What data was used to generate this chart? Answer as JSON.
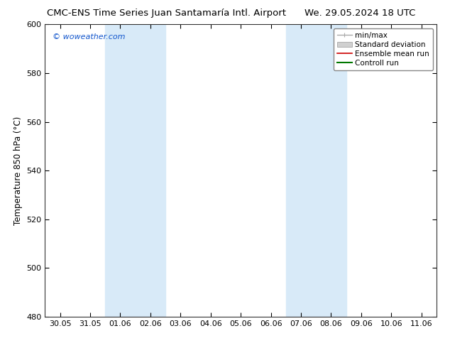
{
  "title_left": "CMC-ENS Time Series Juan Santamaría Intl. Airport",
  "title_right": "We. 29.05.2024 18 UTC",
  "ylabel": "Temperature 850 hPa (°C)",
  "watermark": "© woweather.com",
  "ylim": [
    480,
    600
  ],
  "yticks": [
    480,
    500,
    520,
    540,
    560,
    580,
    600
  ],
  "xtick_labels": [
    "30.05",
    "31.05",
    "01.06",
    "02.06",
    "03.06",
    "04.06",
    "05.06",
    "06.06",
    "07.06",
    "08.06",
    "09.06",
    "10.06",
    "11.06"
  ],
  "xtick_positions": [
    0,
    1,
    2,
    3,
    4,
    5,
    6,
    7,
    8,
    9,
    10,
    11,
    12
  ],
  "xlim": [
    -0.5,
    12.5
  ],
  "shaded_bands": [
    {
      "xmin": 2,
      "xmax": 4
    },
    {
      "xmin": 8,
      "xmax": 10
    }
  ],
  "shade_color": "#d8eaf8",
  "background_color": "#ffffff",
  "plot_bg_color": "#ffffff",
  "legend_entries": [
    {
      "label": "min/max",
      "color": "#aaaaaa",
      "lw": 1.0
    },
    {
      "label": "Standard deviation",
      "color": "#bbbbbb",
      "lw": 5
    },
    {
      "label": "Ensemble mean run",
      "color": "#cc0000",
      "lw": 1.2
    },
    {
      "label": "Controll run",
      "color": "#007700",
      "lw": 1.5
    }
  ],
  "title_fontsize": 9.5,
  "axis_label_fontsize": 8.5,
  "tick_fontsize": 8,
  "watermark_color": "#1155cc",
  "watermark_fontsize": 8,
  "legend_fontsize": 7.5
}
